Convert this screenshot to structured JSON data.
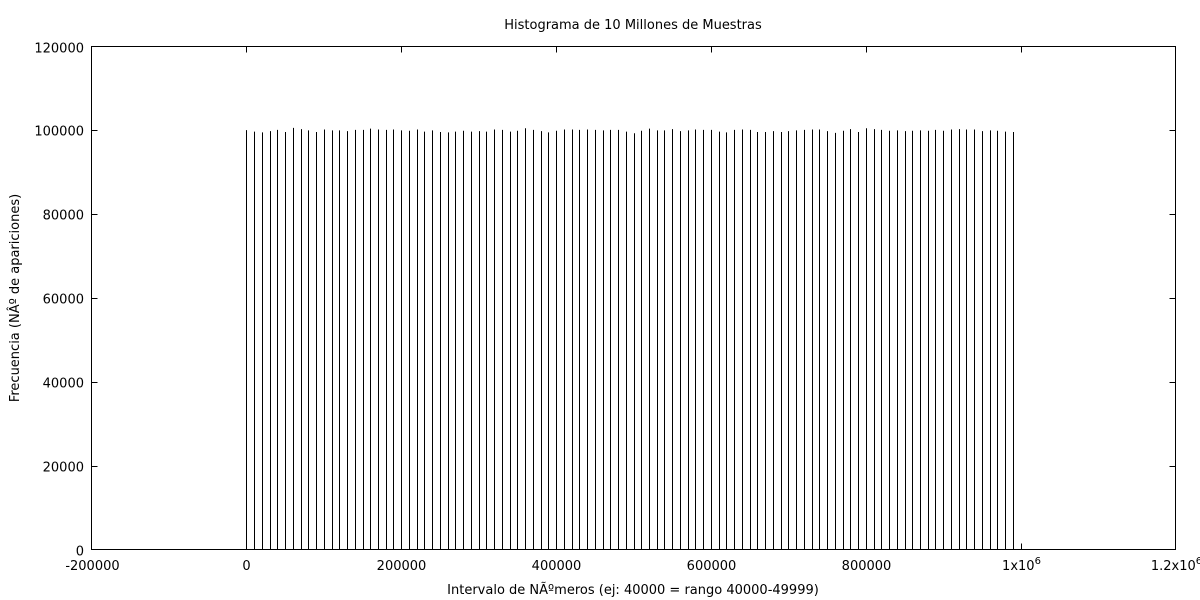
{
  "chart_data": {
    "type": "bar",
    "title": "Histograma de 10 Millones de Muestras",
    "xlabel": "Intervalo de NÃºmeros (ej: 40000 = rango 40000-49999)",
    "ylabel": "Frecuencia (NÂº de apariciones)",
    "xlim": [
      -200000,
      1200000
    ],
    "ylim": [
      0,
      120000
    ],
    "grid": false,
    "legend": "none",
    "bar_color": "#000000",
    "xtick_labels": [
      {
        "value": -200000,
        "label": "-200000"
      },
      {
        "value": 0,
        "label": "0"
      },
      {
        "value": 200000,
        "label": "200000"
      },
      {
        "value": 400000,
        "label": "400000"
      },
      {
        "value": 600000,
        "label": "600000"
      },
      {
        "value": 800000,
        "label": "800000"
      },
      {
        "value": 1000000,
        "label": "1x10",
        "sup": "6"
      },
      {
        "value": 1200000,
        "label": "1.2x10",
        "sup": "6"
      }
    ],
    "ytick_labels": [
      {
        "value": 0,
        "label": "0"
      },
      {
        "value": 20000,
        "label": "20000"
      },
      {
        "value": 40000,
        "label": "40000"
      },
      {
        "value": 60000,
        "label": "60000"
      },
      {
        "value": 80000,
        "label": "80000"
      },
      {
        "value": 100000,
        "label": "100000"
      },
      {
        "value": 120000,
        "label": "120000"
      }
    ],
    "x": [
      0,
      10000,
      20000,
      30000,
      40000,
      50000,
      60000,
      70000,
      80000,
      90000,
      100000,
      110000,
      120000,
      130000,
      140000,
      150000,
      160000,
      170000,
      180000,
      190000,
      200000,
      210000,
      220000,
      230000,
      240000,
      250000,
      260000,
      270000,
      280000,
      290000,
      300000,
      310000,
      320000,
      330000,
      340000,
      350000,
      360000,
      370000,
      380000,
      390000,
      400000,
      410000,
      420000,
      430000,
      440000,
      450000,
      460000,
      470000,
      480000,
      490000,
      500000,
      510000,
      520000,
      530000,
      540000,
      550000,
      560000,
      570000,
      580000,
      590000,
      600000,
      610000,
      620000,
      630000,
      640000,
      650000,
      660000,
      670000,
      680000,
      690000,
      700000,
      710000,
      720000,
      730000,
      740000,
      750000,
      760000,
      770000,
      780000,
      790000,
      800000,
      810000,
      820000,
      830000,
      840000,
      850000,
      860000,
      870000,
      880000,
      890000,
      900000,
      910000,
      920000,
      930000,
      940000,
      950000,
      960000,
      970000,
      980000,
      990000
    ],
    "values": [
      100050,
      99700,
      99500,
      99800,
      100100,
      99600,
      100600,
      100300,
      100000,
      99600,
      100200,
      100000,
      100000,
      99800,
      100100,
      100100,
      100400,
      100200,
      100100,
      100200,
      100000,
      99900,
      100200,
      99700,
      100000,
      99600,
      99500,
      99700,
      99900,
      99700,
      99800,
      99700,
      100200,
      100100,
      99700,
      99900,
      100500,
      100100,
      99800,
      99500,
      99900,
      100200,
      100200,
      100100,
      100200,
      100100,
      100000,
      100100,
      100100,
      99700,
      99300,
      99900,
      100400,
      100000,
      100000,
      100300,
      99800,
      100000,
      100200,
      100100,
      100100,
      99700,
      99500,
      100100,
      100200,
      100100,
      99600,
      99600,
      99800,
      99600,
      99800,
      100000,
      100100,
      100200,
      100200,
      99800,
      99400,
      99900,
      100300,
      99600,
      100500,
      100300,
      100100,
      99900,
      100000,
      99800,
      99900,
      100000,
      99900,
      100100,
      99900,
      100200,
      100300,
      100200,
      100200,
      99800,
      100000,
      99900,
      99700,
      99600
    ]
  }
}
